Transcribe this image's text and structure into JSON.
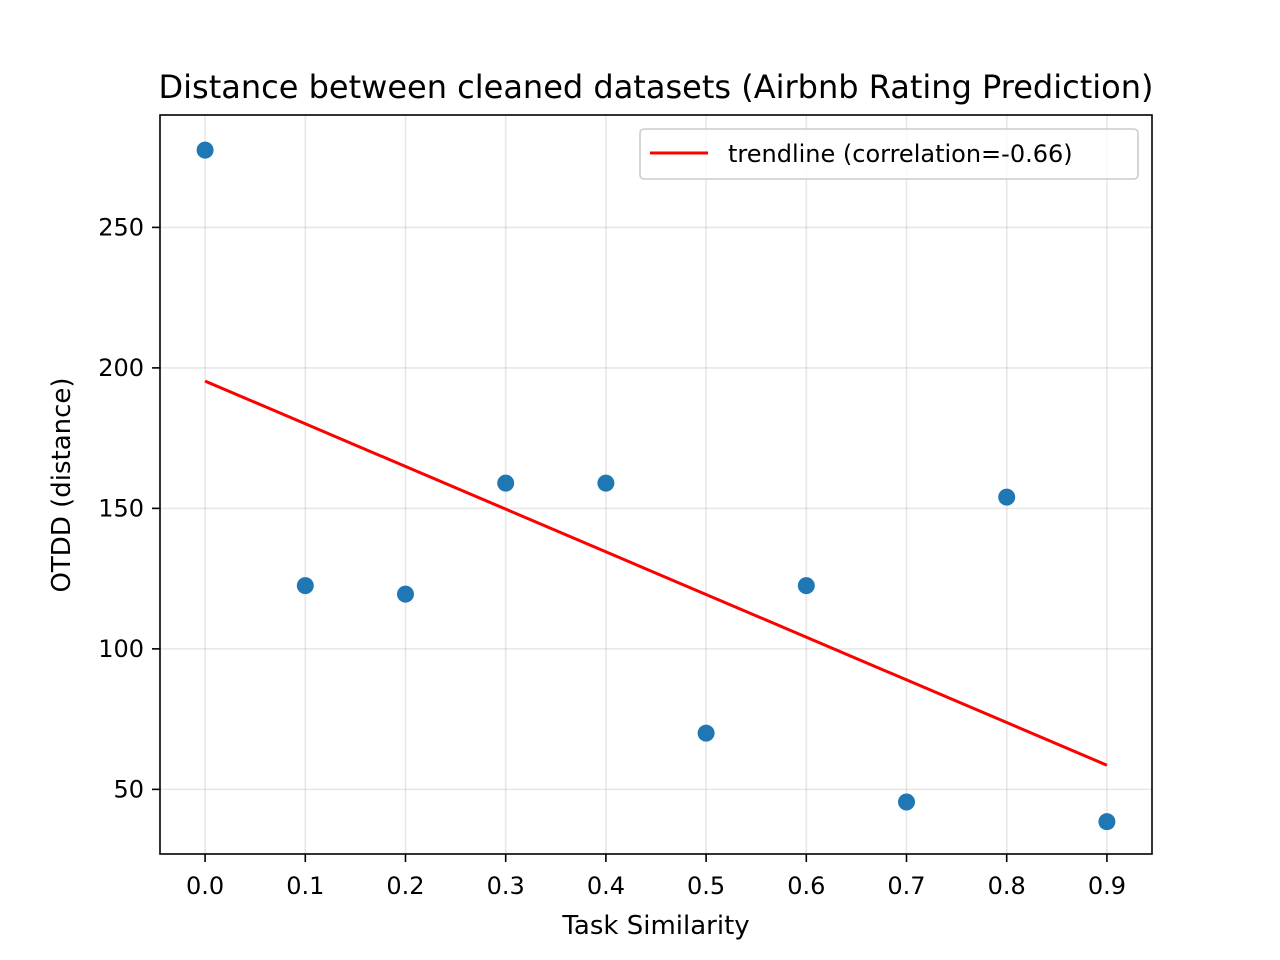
{
  "chart_data": {
    "type": "scatter",
    "title": "Distance between cleaned datasets (Airbnb Rating Prediction)",
    "xlabel": "Task Similarity",
    "ylabel": "OTDD (distance)",
    "xlim": [
      -0.045,
      0.945
    ],
    "ylim": [
      27,
      290
    ],
    "xticks": [
      0.0,
      0.1,
      0.2,
      0.3,
      0.4,
      0.5,
      0.6,
      0.7,
      0.8,
      0.9
    ],
    "xtick_labels": [
      "0.0",
      "0.1",
      "0.2",
      "0.3",
      "0.4",
      "0.5",
      "0.6",
      "0.7",
      "0.8",
      "0.9"
    ],
    "yticks": [
      50,
      100,
      150,
      200,
      250
    ],
    "ytick_labels": [
      "50",
      "100",
      "150",
      "200",
      "250"
    ],
    "grid": true,
    "legend_position": "top-right",
    "series": [
      {
        "type": "scatter",
        "color": "#1f77b4",
        "x": [
          0.0,
          0.1,
          0.2,
          0.3,
          0.4,
          0.5,
          0.6,
          0.7,
          0.8,
          0.9
        ],
        "y": [
          277.5,
          122.5,
          119.5,
          159.0,
          159.0,
          70.0,
          122.5,
          45.5,
          154.0,
          38.5
        ]
      },
      {
        "type": "line",
        "name": "trendline (correlation=-0.66)",
        "color": "#ff0000",
        "x": [
          0.0,
          0.9
        ],
        "y": [
          195.3,
          58.6
        ]
      }
    ]
  }
}
